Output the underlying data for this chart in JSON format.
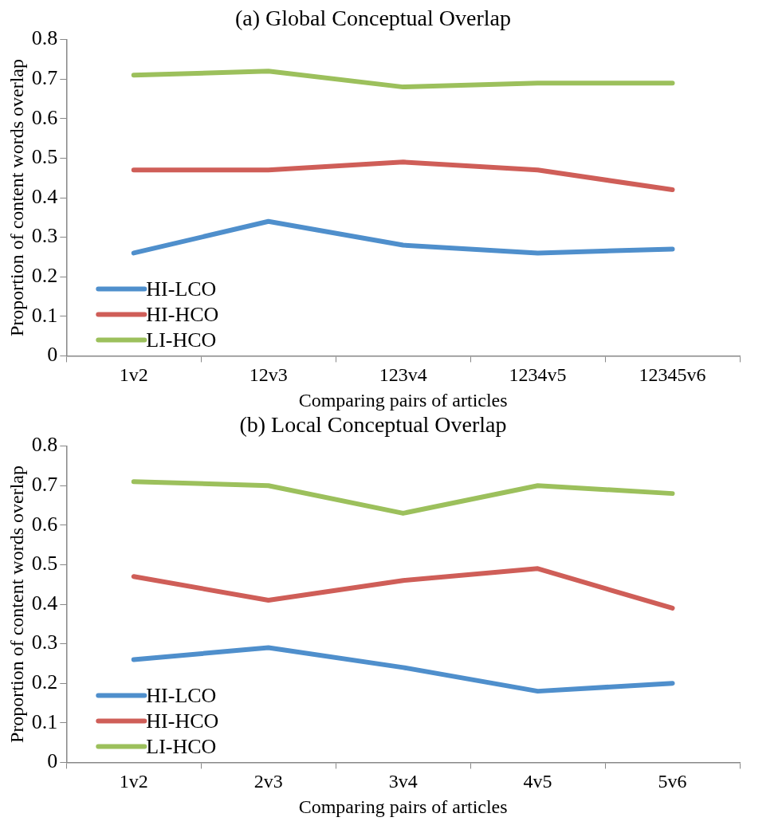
{
  "chart_data": [
    {
      "type": "line",
      "title": "(a) Global Conceptual Overlap",
      "xlabel": "Comparing pairs of articles",
      "ylabel": "Proportion of content words overlap",
      "categories": [
        "1v2",
        "12v3",
        "123v4",
        "1234v5",
        "12345v6"
      ],
      "ylim": [
        0,
        0.8
      ],
      "yticks": [
        0,
        0.1,
        0.2,
        0.3,
        0.4,
        0.5,
        0.6,
        0.7,
        0.8
      ],
      "grid": false,
      "legend": "bottom left",
      "marker": "none",
      "series": [
        {
          "name": "HI-LCO",
          "color": "#4f8fcc",
          "values": [
            0.26,
            0.34,
            0.28,
            0.26,
            0.27
          ]
        },
        {
          "name": "HI-HCO",
          "color": "#cf5e58",
          "values": [
            0.47,
            0.47,
            0.49,
            0.47,
            0.42
          ]
        },
        {
          "name": "LI-HCO",
          "color": "#9cc05c",
          "values": [
            0.71,
            0.72,
            0.68,
            0.69,
            0.69
          ]
        }
      ]
    },
    {
      "type": "line",
      "title": "(b) Local Conceptual Overlap",
      "xlabel": "Comparing pairs of articles",
      "ylabel": "Proportion of content words overlap",
      "categories": [
        "1v2",
        "2v3",
        "3v4",
        "4v5",
        "5v6"
      ],
      "ylim": [
        0,
        0.8
      ],
      "yticks": [
        0,
        0.1,
        0.2,
        0.3,
        0.4,
        0.5,
        0.6,
        0.7,
        0.8
      ],
      "grid": false,
      "legend": "bottom left",
      "marker": "none",
      "series": [
        {
          "name": "HI-LCO",
          "color": "#4f8fcc",
          "values": [
            0.26,
            0.29,
            0.24,
            0.18,
            0.2
          ]
        },
        {
          "name": "HI-HCO",
          "color": "#cf5e58",
          "values": [
            0.47,
            0.41,
            0.46,
            0.49,
            0.39
          ]
        },
        {
          "name": "LI-HCO",
          "color": "#9cc05c",
          "values": [
            0.71,
            0.7,
            0.63,
            0.7,
            0.68
          ]
        }
      ]
    }
  ]
}
